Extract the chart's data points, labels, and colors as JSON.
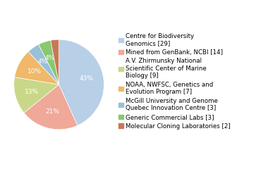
{
  "labels": [
    "Centre for Biodiversity\nGenomics [29]",
    "Mined from GenBank, NCBI [14]",
    "A.V. Zhirmunsky National\nScientific Center of Marine\nBiology [9]",
    "NOAA, NWFSC, Genetics and\nEvolution Program [7]",
    "McGill University and Genome\nQuebec Innovation Centre [3]",
    "Generic Commercial Labs [3]",
    "Molecular Cloning Laboratories [2]"
  ],
  "values": [
    29,
    14,
    9,
    7,
    3,
    3,
    2
  ],
  "colors": [
    "#b8cfe8",
    "#f0a898",
    "#c8d888",
    "#f0b868",
    "#98c0d8",
    "#88c870",
    "#c87858"
  ],
  "startangle": 90,
  "text_color": "white",
  "fontsize": 6.5,
  "legend_fontsize": 6.2
}
